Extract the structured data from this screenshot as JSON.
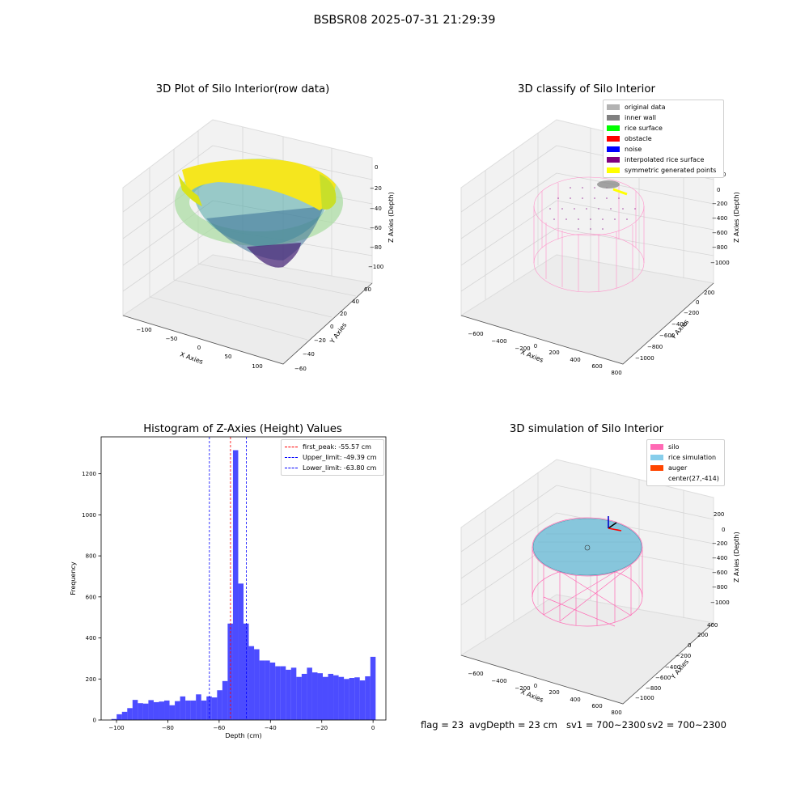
{
  "suptitle": "BSBSR08 2025-07-31 21:29:39",
  "panels": {
    "raw": {
      "title": "3D Plot of Silo Interior(row data)",
      "xlabel": "X Axies",
      "ylabel": "Y Axies",
      "zlabel": "Z Axies (Depth)",
      "xticks": [
        "−100",
        "−50",
        "0",
        "50",
        "100"
      ],
      "yticks": [
        "−60",
        "−40",
        "−20",
        "0",
        "20",
        "40",
        "60"
      ],
      "zticks": [
        "−100",
        "−80",
        "−60",
        "−40",
        "−20",
        "0"
      ]
    },
    "classify": {
      "title": "3D classify of Silo Interior",
      "xlabel": "X Axies",
      "ylabel": "Y Axies",
      "zlabel": "Z Axies (Depth)",
      "xticks": [
        "−600",
        "−400",
        "−200",
        "0",
        "200",
        "400",
        "600",
        "800"
      ],
      "yticks": [
        "−1000",
        "−800",
        "−600",
        "−400",
        "−200",
        "0",
        "200"
      ],
      "zticks": [
        "−1000",
        "−800",
        "−600",
        "−400",
        "−200",
        "0",
        "200"
      ],
      "legend": [
        {
          "label": "original data",
          "color": "#b3b3b3"
        },
        {
          "label": "inner wall",
          "color": "#808080"
        },
        {
          "label": "rice surface",
          "color": "#00ff00"
        },
        {
          "label": "obstacle",
          "color": "#ff0000"
        },
        {
          "label": "noise",
          "color": "#0000ff"
        },
        {
          "label": "interpolated rice surface",
          "color": "#800080"
        },
        {
          "label": "symmetric generated points",
          "color": "#ffff00"
        }
      ]
    },
    "sim": {
      "title": "3D simulation of Silo Interior",
      "xlabel": "X Axies",
      "ylabel": "Y Axies",
      "zlabel": "Z Axies (Depth)",
      "xticks": [
        "−600",
        "−400",
        "−200",
        "0",
        "200",
        "400",
        "600",
        "800"
      ],
      "yticks": [
        "−1000",
        "−800",
        "−600",
        "−400",
        "−200",
        "0",
        "200",
        "400"
      ],
      "zticks": [
        "−1000",
        "−800",
        "−600",
        "−400",
        "−200",
        "0",
        "200"
      ],
      "legend": [
        {
          "label": "silo",
          "color": "#ff69b4"
        },
        {
          "label": "rice simulation",
          "color": "#87ceeb"
        },
        {
          "label": "auger",
          "color": "#ff4500"
        },
        {
          "label": "center(27,-414)",
          "color": ""
        }
      ]
    }
  },
  "footer": {
    "flag": "flag = 23",
    "avg": "avgDepth = 23 cm",
    "sv1": "sv1 = 700~2300",
    "sv2": "sv2 = 700~2300"
  },
  "chart_data": {
    "type": "bar",
    "title": "Histogram of Z-Axies (Height) Values",
    "xlabel": "Depth (cm)",
    "ylabel": "Frequency",
    "xlim": [
      -106,
      5
    ],
    "ylim": [
      0,
      1380
    ],
    "xticks": [
      -100,
      -80,
      -60,
      -40,
      -20,
      0
    ],
    "yticks": [
      0,
      200,
      400,
      600,
      800,
      1000,
      1200
    ],
    "bar_color": "#0000ff",
    "bin_edges_start": -102,
    "bin_width": 2.06,
    "values": [
      5,
      28,
      40,
      58,
      98,
      82,
      80,
      97,
      87,
      90,
      95,
      72,
      92,
      115,
      95,
      95,
      125,
      95,
      115,
      110,
      145,
      190,
      470,
      1315,
      665,
      470,
      360,
      345,
      290,
      290,
      280,
      262,
      262,
      245,
      255,
      210,
      225,
      255,
      232,
      228,
      210,
      225,
      218,
      210,
      200,
      205,
      208,
      193,
      213,
      308
    ],
    "lines": [
      {
        "label": "first_peak: -55.57 cm",
        "x": -55.57,
        "color": "#ff0000"
      },
      {
        "label": "Upper_limit: -49.39 cm",
        "x": -49.39,
        "color": "#0000ff"
      },
      {
        "label": "Lower_limit: -63.80 cm",
        "x": -63.8,
        "color": "#0000ff"
      }
    ]
  }
}
